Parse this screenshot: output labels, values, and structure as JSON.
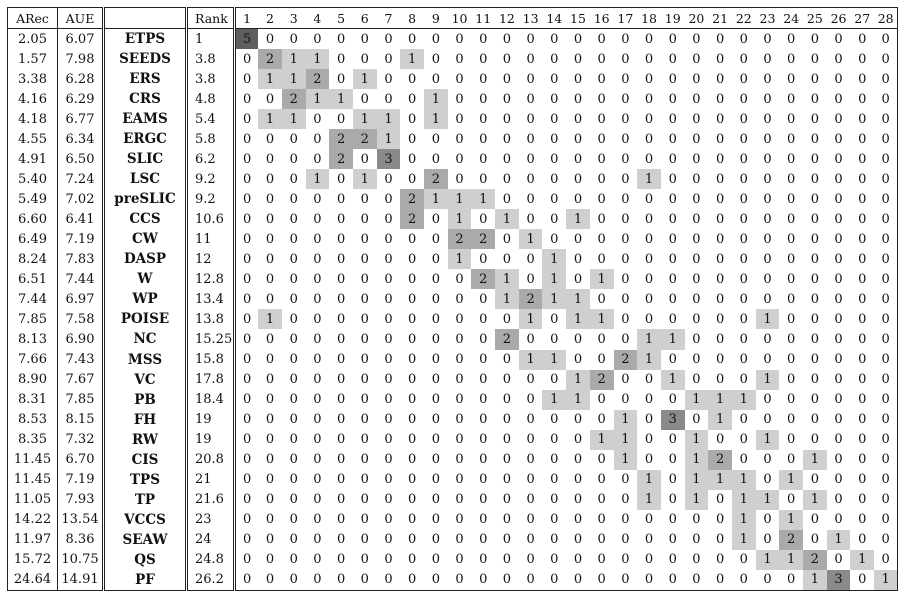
{
  "headers": [
    "ARec",
    "AUE",
    "",
    "Rank",
    "1",
    "2",
    "3",
    "4",
    "5",
    "6",
    "7",
    "8",
    "9",
    "10",
    "11",
    "12",
    "13",
    "14",
    "15",
    "16",
    "17",
    "18",
    "19",
    "20",
    "21",
    "22",
    "23",
    "24",
    "25",
    "26",
    "27",
    "28"
  ],
  "rows": [
    {
      "arec": "2.05",
      "aue": "6.07",
      "name": "ETPS",
      "rank": "1",
      "counts": [
        5,
        0,
        0,
        0,
        0,
        0,
        0,
        0,
        0,
        0,
        0,
        0,
        0,
        0,
        0,
        0,
        0,
        0,
        0,
        0,
        0,
        0,
        0,
        0,
        0,
        0,
        0,
        0
      ]
    },
    {
      "arec": "1.57",
      "aue": "7.98",
      "name": "SEEDS",
      "rank": "3.8",
      "counts": [
        0,
        2,
        1,
        1,
        0,
        0,
        0,
        1,
        0,
        0,
        0,
        0,
        0,
        0,
        0,
        0,
        0,
        0,
        0,
        0,
        0,
        0,
        0,
        0,
        0,
        0,
        0,
        0
      ]
    },
    {
      "arec": "3.38",
      "aue": "6.28",
      "name": "ERS",
      "rank": "3.8",
      "counts": [
        0,
        1,
        1,
        2,
        0,
        1,
        0,
        0,
        0,
        0,
        0,
        0,
        0,
        0,
        0,
        0,
        0,
        0,
        0,
        0,
        0,
        0,
        0,
        0,
        0,
        0,
        0,
        0
      ]
    },
    {
      "arec": "4.16",
      "aue": "6.29",
      "name": "CRS",
      "rank": "4.8",
      "counts": [
        0,
        0,
        2,
        1,
        1,
        0,
        0,
        0,
        1,
        0,
        0,
        0,
        0,
        0,
        0,
        0,
        0,
        0,
        0,
        0,
        0,
        0,
        0,
        0,
        0,
        0,
        0,
        0
      ]
    },
    {
      "arec": "4.18",
      "aue": "6.77",
      "name": "EAMS",
      "rank": "5.4",
      "counts": [
        0,
        1,
        1,
        0,
        0,
        1,
        1,
        0,
        1,
        0,
        0,
        0,
        0,
        0,
        0,
        0,
        0,
        0,
        0,
        0,
        0,
        0,
        0,
        0,
        0,
        0,
        0,
        0
      ]
    },
    {
      "arec": "4.55",
      "aue": "6.34",
      "name": "ERGC",
      "rank": "5.8",
      "counts": [
        0,
        0,
        0,
        0,
        2,
        2,
        1,
        0,
        0,
        0,
        0,
        0,
        0,
        0,
        0,
        0,
        0,
        0,
        0,
        0,
        0,
        0,
        0,
        0,
        0,
        0,
        0,
        0
      ]
    },
    {
      "arec": "4.91",
      "aue": "6.50",
      "name": "SLIC",
      "rank": "6.2",
      "counts": [
        0,
        0,
        0,
        0,
        2,
        0,
        3,
        0,
        0,
        0,
        0,
        0,
        0,
        0,
        0,
        0,
        0,
        0,
        0,
        0,
        0,
        0,
        0,
        0,
        0,
        0,
        0,
        0
      ]
    },
    {
      "arec": "5.40",
      "aue": "7.24",
      "name": "LSC",
      "rank": "9.2",
      "counts": [
        0,
        0,
        0,
        1,
        0,
        1,
        0,
        0,
        2,
        0,
        0,
        0,
        0,
        0,
        0,
        0,
        0,
        1,
        0,
        0,
        0,
        0,
        0,
        0,
        0,
        0,
        0,
        0
      ]
    },
    {
      "arec": "5.49",
      "aue": "7.02",
      "name": "preSLIC",
      "rank": "9.2",
      "counts": [
        0,
        0,
        0,
        0,
        0,
        0,
        0,
        2,
        1,
        1,
        1,
        0,
        0,
        0,
        0,
        0,
        0,
        0,
        0,
        0,
        0,
        0,
        0,
        0,
        0,
        0,
        0,
        0
      ]
    },
    {
      "arec": "6.60",
      "aue": "6.41",
      "name": "CCS",
      "rank": "10.6",
      "counts": [
        0,
        0,
        0,
        0,
        0,
        0,
        0,
        2,
        0,
        1,
        0,
        1,
        0,
        0,
        1,
        0,
        0,
        0,
        0,
        0,
        0,
        0,
        0,
        0,
        0,
        0,
        0,
        0
      ]
    },
    {
      "arec": "6.49",
      "aue": "7.19",
      "name": "CW",
      "rank": "11",
      "counts": [
        0,
        0,
        0,
        0,
        0,
        0,
        0,
        0,
        0,
        2,
        2,
        0,
        1,
        0,
        0,
        0,
        0,
        0,
        0,
        0,
        0,
        0,
        0,
        0,
        0,
        0,
        0,
        0
      ]
    },
    {
      "arec": "8.24",
      "aue": "7.83",
      "name": "DASP",
      "rank": "12",
      "counts": [
        0,
        0,
        0,
        0,
        0,
        0,
        0,
        0,
        0,
        1,
        0,
        0,
        0,
        1,
        0,
        0,
        0,
        0,
        0,
        0,
        0,
        0,
        0,
        0,
        0,
        0,
        0,
        0
      ]
    },
    {
      "arec": "6.51",
      "aue": "7.44",
      "name": "W",
      "rank": "12.8",
      "counts": [
        0,
        0,
        0,
        0,
        0,
        0,
        0,
        0,
        0,
        0,
        2,
        1,
        0,
        1,
        0,
        1,
        0,
        0,
        0,
        0,
        0,
        0,
        0,
        0,
        0,
        0,
        0,
        0
      ]
    },
    {
      "arec": "7.44",
      "aue": "6.97",
      "name": "WP",
      "rank": "13.4",
      "counts": [
        0,
        0,
        0,
        0,
        0,
        0,
        0,
        0,
        0,
        0,
        0,
        1,
        2,
        1,
        1,
        0,
        0,
        0,
        0,
        0,
        0,
        0,
        0,
        0,
        0,
        0,
        0,
        0
      ]
    },
    {
      "arec": "7.85",
      "aue": "7.58",
      "name": "POISE",
      "rank": "13.8",
      "counts": [
        0,
        1,
        0,
        0,
        0,
        0,
        0,
        0,
        0,
        0,
        0,
        0,
        1,
        0,
        1,
        1,
        0,
        0,
        0,
        0,
        0,
        0,
        1,
        0,
        0,
        0,
        0,
        0
      ]
    },
    {
      "arec": "8.13",
      "aue": "6.90",
      "name": "NC",
      "rank": "15.25",
      "counts": [
        0,
        0,
        0,
        0,
        0,
        0,
        0,
        0,
        0,
        0,
        0,
        2,
        0,
        0,
        0,
        0,
        0,
        1,
        1,
        0,
        0,
        0,
        0,
        0,
        0,
        0,
        0,
        0
      ]
    },
    {
      "arec": "7.66",
      "aue": "7.43",
      "name": "MSS",
      "rank": "15.8",
      "counts": [
        0,
        0,
        0,
        0,
        0,
        0,
        0,
        0,
        0,
        0,
        0,
        0,
        1,
        1,
        0,
        0,
        2,
        1,
        0,
        0,
        0,
        0,
        0,
        0,
        0,
        0,
        0,
        0
      ]
    },
    {
      "arec": "8.90",
      "aue": "7.67",
      "name": "VC",
      "rank": "17.8",
      "counts": [
        0,
        0,
        0,
        0,
        0,
        0,
        0,
        0,
        0,
        0,
        0,
        0,
        0,
        0,
        1,
        2,
        0,
        0,
        1,
        0,
        0,
        0,
        1,
        0,
        0,
        0,
        0,
        0
      ]
    },
    {
      "arec": "8.31",
      "aue": "7.85",
      "name": "PB",
      "rank": "18.4",
      "counts": [
        0,
        0,
        0,
        0,
        0,
        0,
        0,
        0,
        0,
        0,
        0,
        0,
        0,
        1,
        1,
        0,
        0,
        0,
        0,
        1,
        1,
        1,
        0,
        0,
        0,
        0,
        0,
        0
      ]
    },
    {
      "arec": "8.53",
      "aue": "8.15",
      "name": "FH",
      "rank": "19",
      "counts": [
        0,
        0,
        0,
        0,
        0,
        0,
        0,
        0,
        0,
        0,
        0,
        0,
        0,
        0,
        0,
        0,
        1,
        0,
        3,
        0,
        1,
        0,
        0,
        0,
        0,
        0,
        0,
        0
      ]
    },
    {
      "arec": "8.35",
      "aue": "7.32",
      "name": "RW",
      "rank": "19",
      "counts": [
        0,
        0,
        0,
        0,
        0,
        0,
        0,
        0,
        0,
        0,
        0,
        0,
        0,
        0,
        0,
        1,
        1,
        0,
        0,
        1,
        0,
        0,
        1,
        0,
        0,
        0,
        0,
        0
      ]
    },
    {
      "arec": "11.45",
      "aue": "6.70",
      "name": "CIS",
      "rank": "20.8",
      "counts": [
        0,
        0,
        0,
        0,
        0,
        0,
        0,
        0,
        0,
        0,
        0,
        0,
        0,
        0,
        0,
        0,
        1,
        0,
        0,
        1,
        2,
        0,
        0,
        0,
        1,
        0,
        0,
        0
      ]
    },
    {
      "arec": "11.45",
      "aue": "7.19",
      "name": "TPS",
      "rank": "21",
      "counts": [
        0,
        0,
        0,
        0,
        0,
        0,
        0,
        0,
        0,
        0,
        0,
        0,
        0,
        0,
        0,
        0,
        0,
        1,
        0,
        1,
        1,
        1,
        0,
        1,
        0,
        0,
        0,
        0
      ]
    },
    {
      "arec": "11.05",
      "aue": "7.93",
      "name": "TP",
      "rank": "21.6",
      "counts": [
        0,
        0,
        0,
        0,
        0,
        0,
        0,
        0,
        0,
        0,
        0,
        0,
        0,
        0,
        0,
        0,
        0,
        1,
        0,
        1,
        0,
        1,
        1,
        0,
        1,
        0,
        0,
        0
      ]
    },
    {
      "arec": "14.22",
      "aue": "13.54",
      "name": "VCCS",
      "rank": "23",
      "counts": [
        0,
        0,
        0,
        0,
        0,
        0,
        0,
        0,
        0,
        0,
        0,
        0,
        0,
        0,
        0,
        0,
        0,
        0,
        0,
        0,
        0,
        1,
        0,
        1,
        0,
        0,
        0,
        0
      ]
    },
    {
      "arec": "11.97",
      "aue": "8.36",
      "name": "SEAW",
      "rank": "24",
      "counts": [
        0,
        0,
        0,
        0,
        0,
        0,
        0,
        0,
        0,
        0,
        0,
        0,
        0,
        0,
        0,
        0,
        0,
        0,
        0,
        0,
        0,
        1,
        0,
        2,
        0,
        1,
        0,
        0
      ]
    },
    {
      "arec": "15.72",
      "aue": "10.75",
      "name": "QS",
      "rank": "24.8",
      "counts": [
        0,
        0,
        0,
        0,
        0,
        0,
        0,
        0,
        0,
        0,
        0,
        0,
        0,
        0,
        0,
        0,
        0,
        0,
        0,
        0,
        0,
        0,
        1,
        1,
        2,
        0,
        1,
        0
      ]
    },
    {
      "arec": "24.64",
      "aue": "14.91",
      "name": "PF",
      "rank": "26.2",
      "counts": [
        0,
        0,
        0,
        0,
        0,
        0,
        0,
        0,
        0,
        0,
        0,
        0,
        0,
        0,
        0,
        0,
        0,
        0,
        0,
        0,
        0,
        0,
        0,
        0,
        1,
        3,
        0,
        1
      ]
    }
  ],
  "colors": {
    "shade_1": "#cfcfcf",
    "shade_2": "#aaaaaa",
    "shade_3": "#8a8a8a",
    "shade_5": "#5f5f5f",
    "rule": "#222222"
  }
}
